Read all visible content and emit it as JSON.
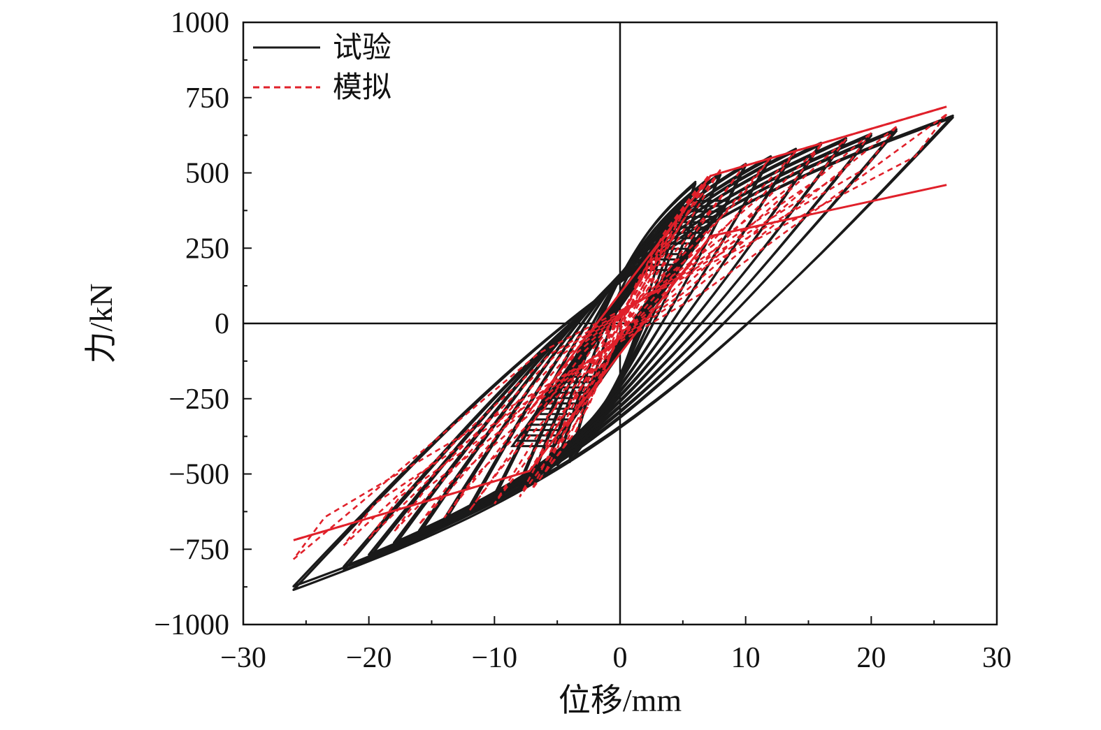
{
  "chart_data": {
    "type": "line",
    "title": "",
    "xlabel": "位移/mm",
    "ylabel": "力/kN",
    "xlim": [
      -30,
      30
    ],
    "ylim": [
      -1000,
      1000
    ],
    "xticks": [
      -30,
      -20,
      -10,
      0,
      10,
      20,
      30
    ],
    "yticks": [
      -1000,
      -750,
      -500,
      -250,
      0,
      250,
      500,
      750,
      1000
    ],
    "xtick_labels": [
      "−30",
      "−20",
      "−10",
      "0",
      "10",
      "20",
      "30"
    ],
    "ytick_labels": [
      "−1000",
      "−750",
      "−500",
      "−250",
      "0",
      "250",
      "500",
      "750",
      "1000"
    ],
    "grid": false,
    "legend_position": "top-left",
    "series": [
      {
        "name": "试验",
        "color": "#1a1a1a",
        "style": "solid",
        "amplitudes": [
          4,
          5,
          6,
          7,
          8,
          10,
          12,
          14,
          16,
          18,
          20,
          22,
          26
        ],
        "peak_values": [
          [
            4,
            350,
            -4,
            -460
          ],
          [
            5,
            400,
            -5,
            -470
          ],
          [
            6,
            470,
            -6,
            -500
          ],
          [
            7,
            480,
            -7,
            -520
          ],
          [
            8,
            500,
            -8,
            -540
          ],
          [
            10,
            530,
            -10,
            -580
          ],
          [
            12,
            555,
            -12,
            -620
          ],
          [
            14,
            580,
            -14,
            -660
          ],
          [
            16,
            600,
            -16,
            -700
          ],
          [
            18,
            615,
            -18,
            -740
          ],
          [
            20,
            630,
            -20,
            -780
          ],
          [
            22,
            645,
            -22,
            -820
          ],
          [
            26.5,
            690,
            -26,
            -885
          ]
        ]
      },
      {
        "name": "模拟",
        "color": "#e0202a",
        "style": "dashed",
        "skeleton_positive": [
          [
            0,
            0
          ],
          [
            7.2,
            490
          ],
          [
            26,
            720
          ]
        ],
        "skeleton_negative": [
          [
            0,
            0
          ],
          [
            -7.2,
            -490
          ],
          [
            -26,
            -720
          ]
        ],
        "unload_upper_branch": [
          [
            -7.2,
            -290
          ],
          [
            7.2,
            490
          ],
          [
            26,
            720
          ]
        ],
        "unload_lower_branch": [
          [
            -26,
            -720
          ],
          [
            -7.2,
            -490
          ],
          [
            7.2,
            290
          ],
          [
            26,
            460
          ]
        ]
      }
    ]
  }
}
